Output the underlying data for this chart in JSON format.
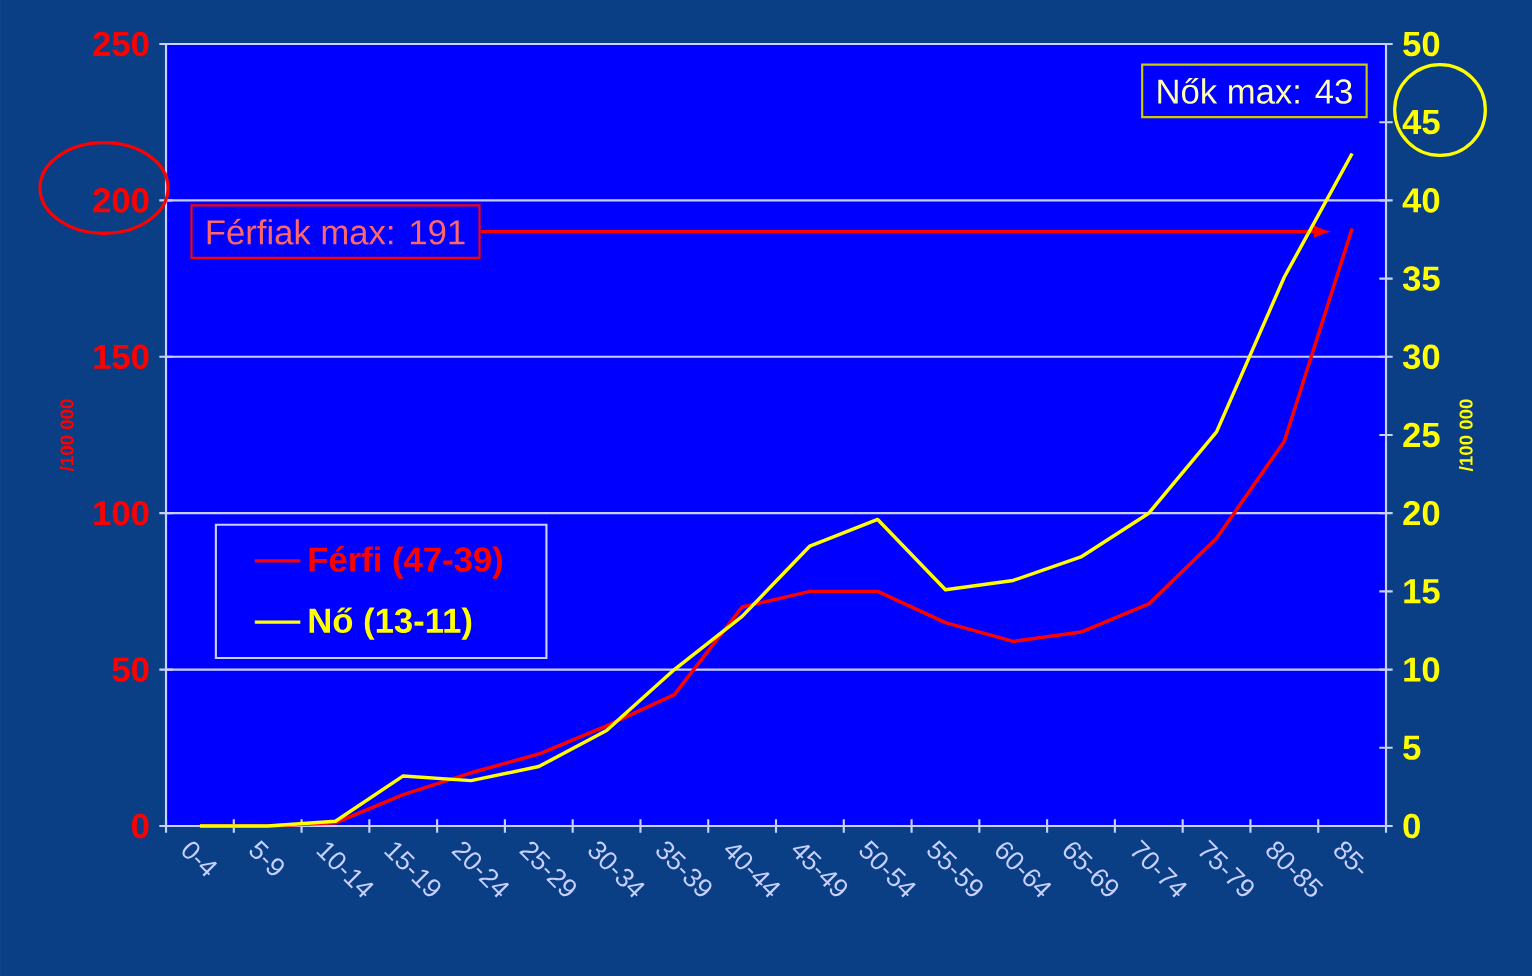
{
  "chart_data": {
    "type": "line",
    "categories": [
      "0-4",
      "5-9",
      "10-14",
      "15-19",
      "20-24",
      "25-29",
      "30-34",
      "35-39",
      "40-44",
      "45-49",
      "50-54",
      "55-59",
      "60-64",
      "65-69",
      "70-74",
      "75-79",
      "80-85",
      "85-"
    ],
    "ylabel": "/100 000",
    "y2label": "/100 000",
    "ylim": [
      0,
      250
    ],
    "yticks": [
      0,
      50,
      100,
      150,
      200,
      250
    ],
    "y2lim": [
      0,
      50
    ],
    "y2ticks": [
      0,
      5,
      10,
      15,
      20,
      25,
      30,
      35,
      40,
      45,
      50
    ],
    "grid": "y",
    "legend": "left",
    "series": [
      {
        "name": "Férfi (47-39)",
        "color": "#ff0000",
        "values": [
          0,
          0,
          1,
          10,
          17,
          23,
          32,
          42,
          70,
          75,
          75,
          65,
          59,
          62,
          71,
          92,
          123,
          191
        ]
      },
      {
        "name": "Nő (13-11)",
        "color": "#ffff00",
        "axis": "y2",
        "values": [
          0,
          0,
          0.3,
          3.2,
          2.9,
          3.8,
          6.1,
          10,
          13.4,
          17.9,
          19.6,
          15.1,
          15.7,
          17.2,
          20,
          25.2,
          35.1,
          43
        ]
      }
    ],
    "annotations": [
      "Férfiak max: 191",
      "Nők max: 43"
    ]
  }
}
